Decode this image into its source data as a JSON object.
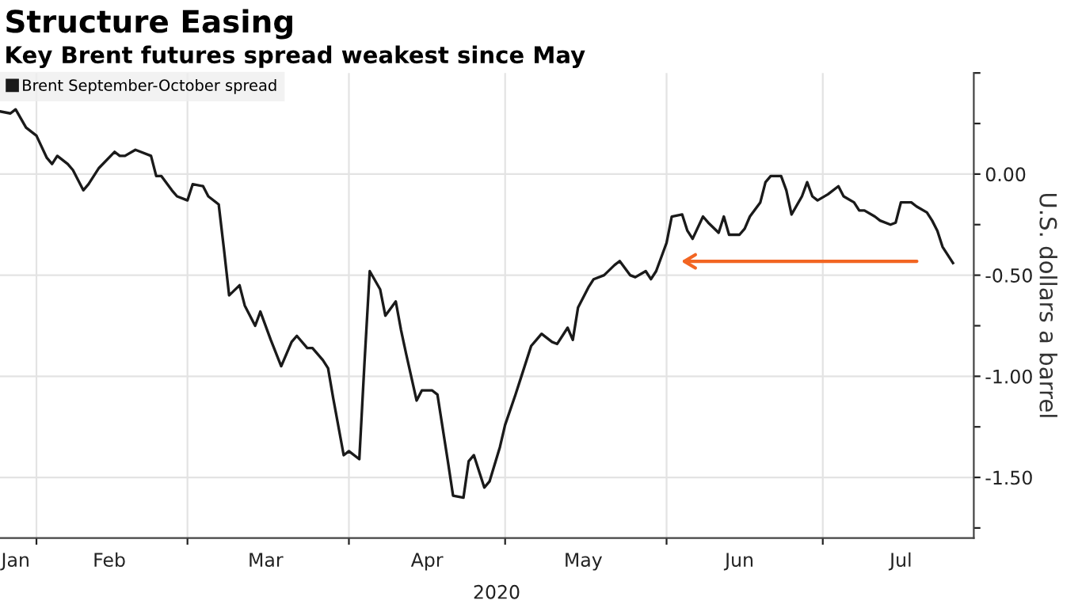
{
  "chart_data": {
    "type": "line",
    "title": "Structure Easing",
    "subtitle": "Key Brent futures spread weakest since May",
    "ylabel": "U.S. dollars a barrel",
    "xlabel": "2020",
    "x": [
      "2020-01-25",
      "2020-01-27",
      "2020-01-28",
      "2020-01-30",
      "2020-02-01",
      "2020-02-03",
      "2020-02-04",
      "2020-02-05",
      "2020-02-07",
      "2020-02-08",
      "2020-02-10",
      "2020-02-11",
      "2020-02-13",
      "2020-02-16",
      "2020-02-17",
      "2020-02-18",
      "2020-02-20",
      "2020-02-21",
      "2020-02-23",
      "2020-02-24",
      "2020-02-25",
      "2020-02-27",
      "2020-02-28",
      "2020-03-01",
      "2020-03-02",
      "2020-03-04",
      "2020-03-05",
      "2020-03-07",
      "2020-03-08",
      "2020-03-09",
      "2020-03-11",
      "2020-03-12",
      "2020-03-14",
      "2020-03-15",
      "2020-03-17",
      "2020-03-19",
      "2020-03-21",
      "2020-03-22",
      "2020-03-24",
      "2020-03-25",
      "2020-03-27",
      "2020-03-28",
      "2020-03-29",
      "2020-03-31",
      "2020-04-01",
      "2020-04-03",
      "2020-04-04",
      "2020-04-05",
      "2020-04-07",
      "2020-04-08",
      "2020-04-10",
      "2020-04-11",
      "2020-04-12",
      "2020-04-14",
      "2020-04-15",
      "2020-04-17",
      "2020-04-18",
      "2020-04-20",
      "2020-04-21",
      "2020-04-23",
      "2020-04-24",
      "2020-04-25",
      "2020-04-27",
      "2020-04-28",
      "2020-04-30",
      "2020-05-01",
      "2020-05-03",
      "2020-05-04",
      "2020-05-06",
      "2020-05-07",
      "2020-05-08",
      "2020-05-10",
      "2020-05-11",
      "2020-05-13",
      "2020-05-14",
      "2020-05-15",
      "2020-05-17",
      "2020-05-18",
      "2020-05-20",
      "2020-05-22",
      "2020-05-23",
      "2020-05-25",
      "2020-05-26",
      "2020-05-28",
      "2020-05-29",
      "2020-05-30",
      "2020-06-01",
      "2020-06-02",
      "2020-06-04",
      "2020-06-05",
      "2020-06-06",
      "2020-06-08",
      "2020-06-09",
      "2020-06-11",
      "2020-06-12",
      "2020-06-13",
      "2020-06-15",
      "2020-06-16",
      "2020-06-17",
      "2020-06-19",
      "2020-06-20",
      "2020-06-21",
      "2020-06-23",
      "2020-06-24",
      "2020-06-25",
      "2020-06-27",
      "2020-06-28",
      "2020-06-29",
      "2020-06-30",
      "2020-07-02",
      "2020-07-04",
      "2020-07-05",
      "2020-07-07",
      "2020-07-08",
      "2020-07-09",
      "2020-07-11",
      "2020-07-12",
      "2020-07-14",
      "2020-07-15",
      "2020-07-16",
      "2020-07-18",
      "2020-07-19",
      "2020-07-21",
      "2020-07-22",
      "2020-07-23",
      "2020-07-24",
      "2020-07-26"
    ],
    "series": [
      {
        "name": "Brent September-October spread",
        "color": "#1a1a1a",
        "values": [
          0.31,
          0.3,
          0.32,
          0.23,
          0.19,
          0.08,
          0.05,
          0.09,
          0.05,
          0.02,
          -0.08,
          -0.05,
          0.03,
          0.11,
          0.09,
          0.09,
          0.12,
          0.11,
          0.09,
          -0.01,
          -0.01,
          -0.08,
          -0.11,
          -0.13,
          -0.05,
          -0.06,
          -0.11,
          -0.15,
          -0.37,
          -0.6,
          -0.55,
          -0.65,
          -0.75,
          -0.68,
          -0.82,
          -0.95,
          -0.83,
          -0.8,
          -0.86,
          -0.86,
          -0.92,
          -0.96,
          -1.11,
          -1.39,
          -1.37,
          -1.41,
          -0.93,
          -0.48,
          -0.57,
          -0.7,
          -0.63,
          -0.77,
          -0.89,
          -1.12,
          -1.07,
          -1.07,
          -1.09,
          -1.42,
          -1.59,
          -1.6,
          -1.42,
          -1.39,
          -1.55,
          -1.52,
          -1.35,
          -1.24,
          -1.09,
          -1.01,
          -0.85,
          -0.82,
          -0.79,
          -0.83,
          -0.84,
          -0.76,
          -0.82,
          -0.66,
          -0.56,
          -0.52,
          -0.5,
          -0.45,
          -0.43,
          -0.5,
          -0.51,
          -0.48,
          -0.52,
          -0.48,
          -0.34,
          -0.21,
          -0.2,
          -0.28,
          -0.32,
          -0.21,
          -0.24,
          -0.29,
          -0.21,
          -0.3,
          -0.3,
          -0.27,
          -0.21,
          -0.14,
          -0.04,
          -0.01,
          -0.01,
          -0.08,
          -0.2,
          -0.11,
          -0.04,
          -0.11,
          -0.13,
          -0.1,
          -0.06,
          -0.11,
          -0.14,
          -0.18,
          -0.18,
          -0.21,
          -0.23,
          -0.25,
          -0.24,
          -0.14,
          -0.14,
          -0.16,
          -0.19,
          -0.23,
          -0.28,
          -0.36,
          -0.44
        ]
      }
    ],
    "xlim": [
      "2020-01-25",
      "2020-07-30"
    ],
    "xticks": [
      {
        "value": "2020-01-28",
        "label": "Jan"
      },
      {
        "value": "2020-02-01",
        "label": null
      },
      {
        "value": "2020-02-15",
        "label": "Feb"
      },
      {
        "value": "2020-03-01",
        "label": null
      },
      {
        "value": "2020-03-16",
        "label": "Mar"
      },
      {
        "value": "2020-04-01",
        "label": null
      },
      {
        "value": "2020-04-16",
        "label": "Apr"
      },
      {
        "value": "2020-05-01",
        "label": null
      },
      {
        "value": "2020-05-16",
        "label": "May"
      },
      {
        "value": "2020-06-01",
        "label": null
      },
      {
        "value": "2020-06-15",
        "label": "Jun"
      },
      {
        "value": "2020-07-01",
        "label": null
      },
      {
        "value": "2020-07-16",
        "label": "Jul"
      }
    ],
    "ylim": [
      -1.8,
      0.5
    ],
    "yticks": [
      {
        "value": 0.5,
        "label": null
      },
      {
        "value": 0.25,
        "label": null
      },
      {
        "value": 0,
        "label": "0.00"
      },
      {
        "value": -0.25,
        "label": null
      },
      {
        "value": -0.5,
        "label": "-0.50"
      },
      {
        "value": -0.75,
        "label": null
      },
      {
        "value": -1,
        "label": "-1.00"
      },
      {
        "value": -1.25,
        "label": null
      },
      {
        "value": -1.5,
        "label": "-1.50"
      },
      {
        "value": -1.75,
        "label": null
      }
    ],
    "grid": true,
    "legend": "top left",
    "marker": "none",
    "line_style": "solid"
  }
}
